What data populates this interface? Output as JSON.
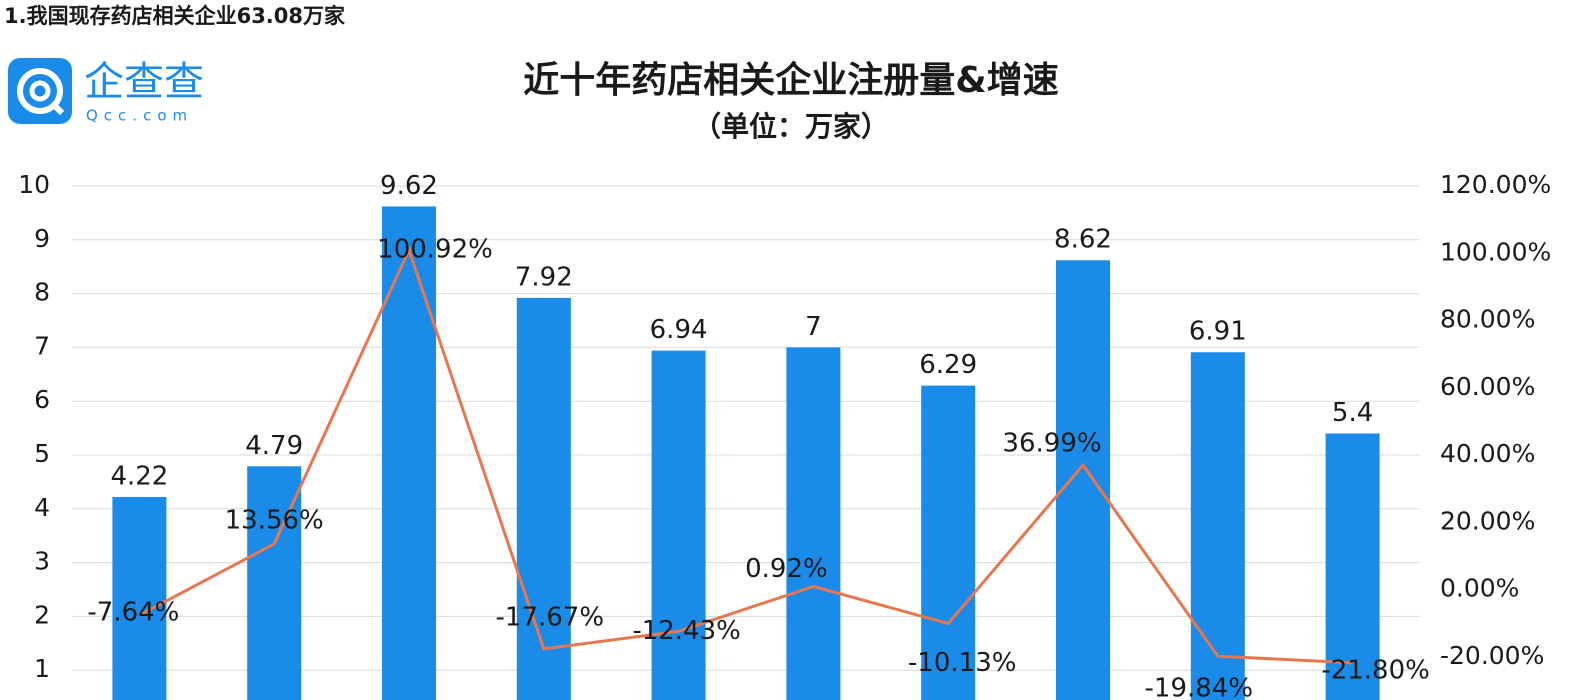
{
  "heading": "1.我国现存药店相关企业63.08万家",
  "logo": {
    "name": "企查查",
    "domain": "Qcc.com"
  },
  "chart_data": {
    "type": "bar-line",
    "title": "近十年药店相关企业注册量&增速",
    "subtitle": "（单位：万家）",
    "categories": [
      null,
      null,
      null,
      null,
      null,
      null,
      null,
      null,
      null,
      null
    ],
    "series": [
      {
        "type": "bar",
        "color": "#1a8be8",
        "values": [
          4.22,
          4.79,
          9.62,
          7.92,
          6.94,
          7,
          6.29,
          8.62,
          6.91,
          5.4
        ]
      },
      {
        "type": "line",
        "axis": "y2",
        "color": "#e8764f",
        "values": [
          -7.64,
          13.56,
          100.92,
          -17.67,
          -12.43,
          0.92,
          -10.13,
          36.99,
          -19.84,
          -21.8
        ],
        "value_labels": [
          "-7.64%",
          "13.56%",
          "100.92%",
          "-17.67%",
          "-12.43%",
          "0.92%",
          "-10.13%",
          "36.99%",
          "-19.84%",
          "-21.80%"
        ]
      }
    ],
    "ylim": [
      0,
      10
    ],
    "yticks": [
      1,
      2,
      3,
      4,
      5,
      6,
      7,
      8,
      9,
      10
    ],
    "y2lim": [
      -40,
      120
    ],
    "y2ticks": [
      {
        "value": -20,
        "label": "-20.00%"
      },
      {
        "value": 0,
        "label": "0.00%"
      },
      {
        "value": 20,
        "label": "20.00%"
      },
      {
        "value": 40,
        "label": "40.00%"
      },
      {
        "value": 60,
        "label": "60.00%"
      },
      {
        "value": 80,
        "label": "80.00%"
      },
      {
        "value": 100,
        "label": "100.00%"
      },
      {
        "value": 120,
        "label": "120.00%"
      }
    ],
    "grid": true
  }
}
